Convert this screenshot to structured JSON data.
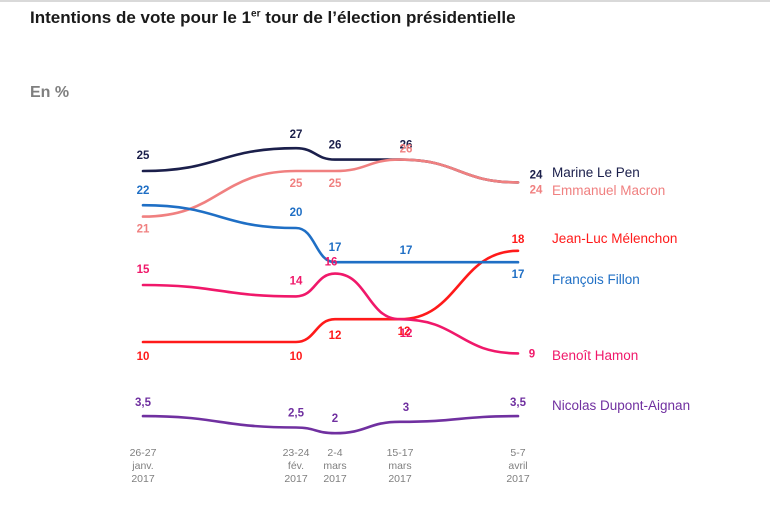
{
  "title_main": "Intentions de vote pour le 1",
  "title_sup": "er",
  "title_rest": " tour de l’élection présidentielle",
  "unit_label": "En %",
  "chart_data": {
    "type": "line",
    "title": "Intentions de vote pour le 1er tour de l’élection présidentielle",
    "ylabel": "En %",
    "xlabel": "",
    "grid": false,
    "legend": "right",
    "ylim": [
      2,
      27
    ],
    "categories": [
      [
        "26-27",
        "janv.",
        "2017"
      ],
      [
        "23-24",
        "fév.",
        "2017"
      ],
      [
        "2-4",
        "mars",
        "2017"
      ],
      [
        "15-17",
        "mars",
        "2017"
      ],
      [
        "5-7",
        "avril",
        "2017"
      ]
    ],
    "series": [
      {
        "name": "Marine Le Pen",
        "color": "#1b1f4b",
        "values": [
          25,
          27,
          26,
          26,
          24
        ]
      },
      {
        "name": "Emmanuel Macron",
        "color": "#f08080",
        "values": [
          21,
          25,
          25,
          26,
          24
        ]
      },
      {
        "name": "Jean-Luc Mélenchon",
        "color": "#ff1a1a",
        "values": [
          10,
          10,
          12,
          12,
          18
        ]
      },
      {
        "name": "François Fillon",
        "color": "#1f6fc5",
        "values": [
          22,
          20,
          17,
          17,
          17
        ]
      },
      {
        "name": "Benoît Hamon",
        "color": "#f0186a",
        "values": [
          15,
          14,
          16,
          12,
          9
        ]
      },
      {
        "name": "Nicolas Dupont-Aignan",
        "color": "#7030a0",
        "values": [
          3.5,
          2.5,
          2,
          3,
          3.5
        ]
      }
    ],
    "value_labels": [
      [
        "25",
        "27",
        "26",
        "26",
        "24"
      ],
      [
        "21",
        "25",
        "25",
        "26",
        "24"
      ],
      [
        "10",
        "10",
        "12",
        "12",
        "18"
      ],
      [
        "22",
        "20",
        "17",
        "17",
        "17"
      ],
      [
        "15",
        "14",
        "16",
        "12",
        "9"
      ],
      [
        "3,5",
        "2,5",
        "2",
        "3",
        "3,5"
      ]
    ]
  }
}
